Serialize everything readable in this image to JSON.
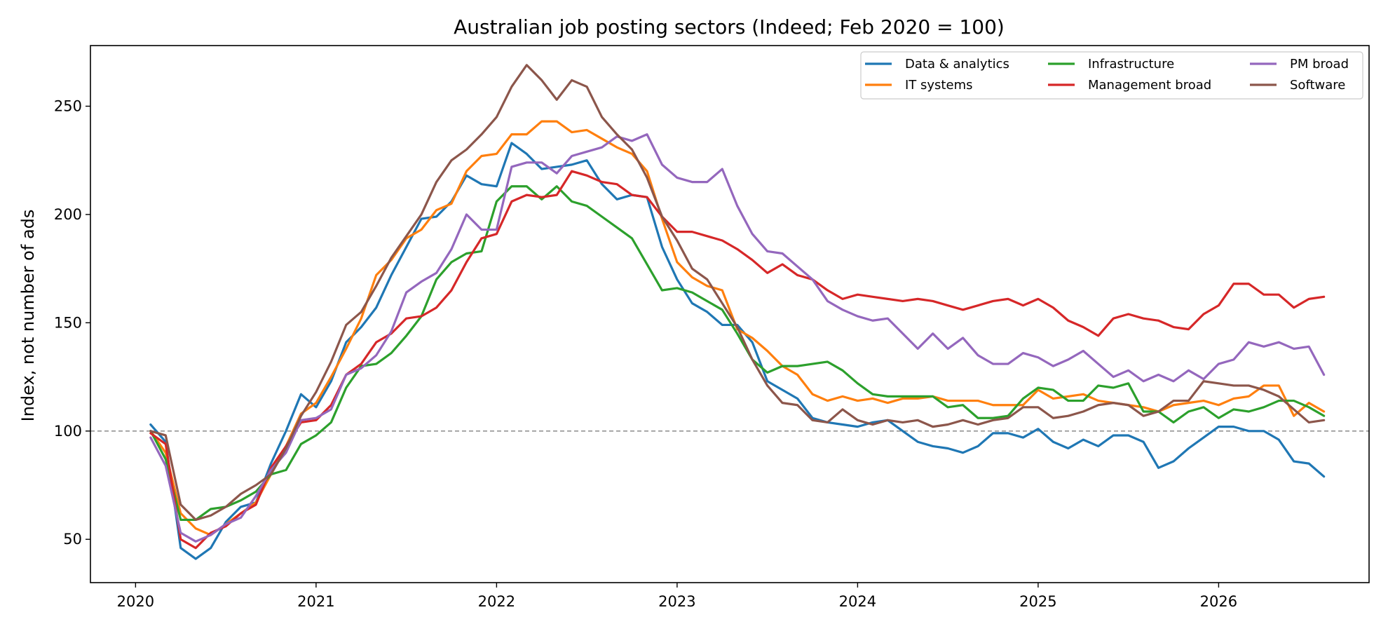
{
  "chart_data": {
    "type": "line",
    "title": "Australian job posting sectors (Indeed; Feb 2020 = 100)",
    "xlabel": "",
    "ylabel": "Index, not number of ads",
    "x_start": "2020-02",
    "x_frequency": "monthly",
    "x_ticks": [
      "2020",
      "2021",
      "2022",
      "2023",
      "2024",
      "2025",
      "2026"
    ],
    "y_ticks": [
      50,
      100,
      150,
      200,
      250
    ],
    "xlim": [
      "2019-10",
      "2026-11"
    ],
    "ylim": [
      30,
      278
    ],
    "reference_line": {
      "y": 100,
      "style": "dashed",
      "color": "#808080"
    },
    "grid": false,
    "legend": {
      "placement": "top-right",
      "columns": 3
    },
    "series": [
      {
        "name": "Data & analytics",
        "color": "#1f77b4",
        "values": [
          103,
          95,
          46,
          41,
          46,
          58,
          65,
          67,
          85,
          100,
          117,
          111,
          123,
          141,
          148,
          157,
          172,
          185,
          198,
          199,
          206,
          218,
          214,
          213,
          233,
          228,
          221,
          222,
          223,
          225,
          214,
          207,
          209,
          208,
          185,
          170,
          159,
          155,
          149,
          149,
          141,
          123,
          119,
          115,
          106,
          104,
          103,
          102,
          104,
          105,
          100,
          95,
          93,
          92,
          90,
          93,
          99,
          99,
          97,
          101,
          95,
          92,
          96,
          93,
          98,
          98,
          95,
          83,
          86,
          92,
          97,
          102,
          102,
          100,
          100,
          96,
          86,
          85,
          79
        ]
      },
      {
        "name": "IT systems",
        "color": "#ff7f0e",
        "values": [
          100,
          90,
          62,
          55,
          52,
          57,
          62,
          67,
          80,
          93,
          108,
          113,
          125,
          138,
          152,
          172,
          179,
          189,
          193,
          202,
          205,
          220,
          227,
          228,
          237,
          237,
          243,
          243,
          238,
          239,
          235,
          231,
          228,
          220,
          198,
          178,
          171,
          167,
          165,
          147,
          143,
          137,
          130,
          126,
          117,
          114,
          116,
          114,
          115,
          113,
          115,
          115,
          116,
          114,
          114,
          114,
          112,
          112,
          112,
          119,
          115,
          116,
          117,
          114,
          113,
          112,
          111,
          109,
          112,
          113,
          114,
          112,
          115,
          116,
          121,
          121,
          107,
          113,
          109
        ]
      },
      {
        "name": "Infrastructure",
        "color": "#2ca02c",
        "values": [
          100,
          87,
          59,
          59,
          64,
          65,
          68,
          72,
          80,
          82,
          94,
          98,
          104,
          120,
          130,
          131,
          136,
          144,
          153,
          170,
          178,
          182,
          183,
          206,
          213,
          213,
          207,
          213,
          206,
          204,
          199,
          194,
          189,
          177,
          165,
          166,
          164,
          160,
          156,
          145,
          133,
          127,
          130,
          130,
          131,
          132,
          128,
          122,
          117,
          116,
          116,
          116,
          116,
          111,
          112,
          106,
          106,
          107,
          115,
          120,
          119,
          114,
          114,
          121,
          120,
          122,
          109,
          109,
          104,
          109,
          111,
          106,
          110,
          109,
          111,
          114,
          114,
          111,
          107
        ]
      },
      {
        "name": "Management broad",
        "color": "#d62728",
        "values": [
          99,
          94,
          50,
          46,
          53,
          56,
          62,
          66,
          83,
          93,
          104,
          105,
          112,
          126,
          131,
          141,
          145,
          152,
          153,
          157,
          165,
          178,
          189,
          191,
          206,
          209,
          208,
          209,
          220,
          218,
          215,
          214,
          209,
          208,
          199,
          192,
          192,
          190,
          188,
          184,
          179,
          173,
          177,
          172,
          170,
          165,
          161,
          163,
          162,
          161,
          160,
          161,
          160,
          158,
          156,
          158,
          160,
          161,
          158,
          161,
          157,
          151,
          148,
          144,
          152,
          154,
          152,
          151,
          148,
          147,
          154,
          158,
          168,
          168,
          163,
          163,
          157,
          161,
          162
        ]
      },
      {
        "name": "PM broad",
        "color": "#9467bd",
        "values": [
          97,
          84,
          53,
          49,
          52,
          57,
          60,
          70,
          82,
          90,
          105,
          106,
          110,
          126,
          129,
          135,
          146,
          164,
          169,
          173,
          184,
          200,
          193,
          193,
          222,
          224,
          224,
          219,
          227,
          229,
          231,
          236,
          234,
          237,
          223,
          217,
          215,
          215,
          221,
          204,
          191,
          183,
          182,
          176,
          170,
          160,
          156,
          153,
          151,
          152,
          145,
          138,
          145,
          138,
          143,
          135,
          131,
          131,
          136,
          134,
          130,
          133,
          137,
          131,
          125,
          128,
          123,
          126,
          123,
          128,
          124,
          131,
          133,
          141,
          139,
          141,
          138,
          139,
          126
        ]
      },
      {
        "name": "Software",
        "color": "#8c564b",
        "values": [
          100,
          98,
          66,
          59,
          61,
          65,
          71,
          75,
          80,
          92,
          107,
          118,
          132,
          149,
          155,
          167,
          180,
          190,
          200,
          215,
          225,
          230,
          237,
          245,
          259,
          269,
          262,
          253,
          262,
          259,
          245,
          237,
          230,
          217,
          199,
          188,
          175,
          170,
          159,
          148,
          133,
          121,
          113,
          112,
          105,
          104,
          110,
          105,
          103,
          105,
          104,
          105,
          102,
          103,
          105,
          103,
          105,
          106,
          111,
          111,
          106,
          107,
          109,
          112,
          113,
          112,
          107,
          109,
          114,
          114,
          123,
          122,
          121,
          121,
          119,
          116,
          110,
          104,
          105
        ]
      }
    ]
  }
}
